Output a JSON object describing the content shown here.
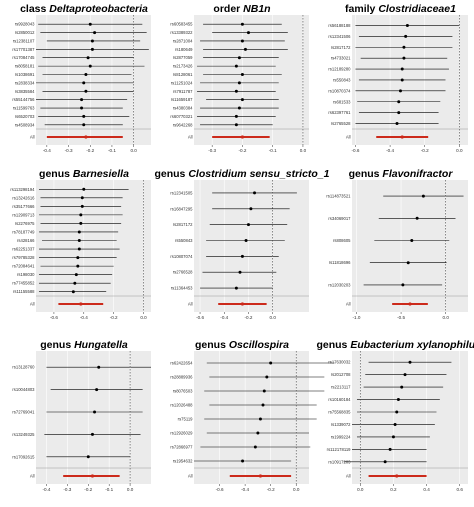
{
  "figure": {
    "panels": [
      {
        "title_prefix": "class ",
        "title_italic": "Deltaproteobacteria"
      },
      {
        "title_prefix": "order ",
        "title_italic": "NB1n"
      },
      {
        "title_prefix": "family ",
        "title_italic": "Clostridiaceae1"
      },
      {
        "title_prefix": "genus ",
        "title_italic": "Barnesiella"
      },
      {
        "title_prefix": "genus ",
        "title_italic": "Clostridium sensu_stricto_1"
      },
      {
        "title_prefix": "genus ",
        "title_italic": "Flavonifractor"
      },
      {
        "title_prefix": "genus ",
        "title_italic": "Hungatella"
      },
      {
        "title_prefix": "genus ",
        "title_italic": "Oscillospira"
      },
      {
        "title_prefix": "genus ",
        "title_italic": "Eubacterium xylanophilum"
      }
    ],
    "colors": {
      "point": "#000000",
      "ci_line": "#000000",
      "overall": "#cc2a1b",
      "panel_bg": "#ebebeb",
      "grid": "#ffffff",
      "zero_line": "#444444"
    }
  },
  "chart_data": [
    {
      "type": "forest",
      "snps": [
        "rs9928043",
        "rs2850012",
        "rs12381107",
        "rs17701387",
        "rs17084745",
        "rs8058181",
        "rs1038691",
        "rs2838334",
        "rs3835584",
        "rs55144756",
        "rs11599763",
        "rs6520703",
        "rs4508934"
      ],
      "estimates": [
        -0.2,
        -0.18,
        -0.19,
        -0.19,
        -0.21,
        -0.2,
        -0.22,
        -0.23,
        -0.22,
        -0.24,
        -0.24,
        -0.23,
        -0.23
      ],
      "ci_low": [
        -0.44,
        -0.43,
        -0.4,
        -0.45,
        -0.42,
        -0.44,
        -0.42,
        -0.45,
        -0.42,
        -0.45,
        -0.43,
        -0.44,
        -0.41
      ],
      "ci_high": [
        0.04,
        0.06,
        0.03,
        0.07,
        0.0,
        0.05,
        -0.01,
        0.0,
        0.0,
        -0.03,
        -0.05,
        -0.02,
        -0.05
      ],
      "overall": {
        "label": "All",
        "estimate": -0.22,
        "ci": [
          -0.4,
          -0.05
        ]
      },
      "xticks": [
        -0.4,
        -0.3,
        -0.2,
        -0.1,
        0.0
      ],
      "xlim": [
        -0.45,
        0.08
      ]
    },
    {
      "type": "forest",
      "snps": [
        "rs60583455",
        "rs13389322",
        "rs2871004",
        "rs180649",
        "rs2877059",
        "rs2173426",
        "rs8128061",
        "rs11251024",
        "rs7911787",
        "rs11659187",
        "rs4380384",
        "rs60770321",
        "rs9642268"
      ],
      "estimates": [
        -0.2,
        -0.18,
        -0.2,
        -0.19,
        -0.21,
        -0.22,
        -0.2,
        -0.21,
        -0.22,
        -0.2,
        -0.21,
        -0.22,
        -0.22
      ],
      "ci_low": [
        -0.33,
        -0.3,
        -0.34,
        -0.33,
        -0.33,
        -0.35,
        -0.33,
        -0.34,
        -0.35,
        -0.32,
        -0.34,
        -0.35,
        -0.34
      ],
      "ci_high": [
        -0.07,
        -0.05,
        -0.06,
        -0.05,
        -0.08,
        -0.09,
        -0.07,
        -0.08,
        -0.09,
        -0.08,
        -0.08,
        -0.09,
        -0.1
      ],
      "overall": {
        "label": "All",
        "estimate": -0.2,
        "ci": [
          -0.3,
          -0.11
        ]
      },
      "xticks": [
        -0.3,
        -0.2,
        -0.1,
        0.0
      ],
      "xlim": [
        -0.36,
        0.02
      ]
    },
    {
      "type": "forest",
      "snps": [
        "rs56188188",
        "rs12341506",
        "rs2817172",
        "rs4733021",
        "rs12189280",
        "rs550843",
        "rs10870374",
        "rs681533",
        "rs62397761",
        "rs2765528"
      ],
      "estimates": [
        -0.3,
        -0.31,
        -0.32,
        -0.32,
        -0.33,
        -0.33,
        -0.34,
        -0.35,
        -0.35,
        -0.36
      ],
      "ci_low": [
        -0.6,
        -0.58,
        -0.6,
        -0.57,
        -0.6,
        -0.58,
        -0.6,
        -0.59,
        -0.58,
        -0.6
      ],
      "ci_high": [
        0.0,
        -0.04,
        -0.04,
        -0.07,
        -0.06,
        -0.08,
        -0.08,
        -0.11,
        -0.12,
        -0.12
      ],
      "overall": {
        "label": "All",
        "estimate": -0.33,
        "ci": [
          -0.48,
          -0.18
        ]
      },
      "xticks": [
        -0.6,
        -0.4,
        -0.2,
        0.0
      ],
      "xlim": [
        -0.62,
        0.05
      ]
    },
    {
      "type": "forest",
      "snps": [
        "rs113298194",
        "rs13242616",
        "rs35177666",
        "rs12909713",
        "rs2276975",
        "rs78187749",
        "rs428166",
        "rs62251337",
        "rs79785328",
        "rs72084641",
        "rs198030",
        "rs77455852",
        "rs11155588"
      ],
      "estimates": [
        -0.4,
        -0.41,
        -0.41,
        -0.42,
        -0.42,
        -0.43,
        -0.43,
        -0.43,
        -0.44,
        -0.44,
        -0.45,
        -0.46,
        -0.47
      ],
      "ci_low": [
        -0.7,
        -0.69,
        -0.69,
        -0.7,
        -0.69,
        -0.7,
        -0.68,
        -0.7,
        -0.7,
        -0.69,
        -0.7,
        -0.7,
        -0.7
      ],
      "ci_high": [
        -0.1,
        -0.14,
        -0.15,
        -0.14,
        -0.15,
        -0.17,
        -0.18,
        -0.16,
        -0.18,
        -0.2,
        -0.21,
        -0.22,
        -0.25
      ],
      "overall": {
        "label": "All",
        "estimate": -0.42,
        "ci": [
          -0.57,
          -0.27
        ]
      },
      "xticks": [
        -0.6,
        -0.4,
        -0.2,
        0.0
      ],
      "xlim": [
        -0.72,
        0.05
      ]
    },
    {
      "type": "forest",
      "snps": [
        "rs12341505",
        "rs16847295",
        "rs2817172",
        "rs550843",
        "rs10807074",
        "rs2766528",
        "rs11364453"
      ],
      "estimates": [
        -0.15,
        -0.18,
        -0.2,
        -0.22,
        -0.25,
        -0.27,
        -0.3
      ],
      "ci_low": [
        -0.5,
        -0.5,
        -0.52,
        -0.55,
        -0.55,
        -0.58,
        -0.6
      ],
      "ci_high": [
        0.2,
        0.14,
        0.12,
        0.1,
        0.05,
        0.03,
        0.0
      ],
      "overall": {
        "label": "All",
        "estimate": -0.25,
        "ci": [
          -0.45,
          -0.05
        ]
      },
      "xticks": [
        -0.6,
        -0.4,
        -0.2,
        0.0
      ],
      "xlim": [
        -0.65,
        0.3
      ]
    },
    {
      "type": "forest",
      "snps": [
        "rs114873521",
        "rs34069017",
        "rs808605",
        "rs11818696",
        "rs12030203"
      ],
      "estimates": [
        -0.25,
        -0.32,
        -0.38,
        -0.42,
        -0.48
      ],
      "ci_low": [
        -0.7,
        -0.75,
        -0.8,
        -0.85,
        -0.92
      ],
      "ci_high": [
        0.2,
        0.11,
        0.04,
        0.01,
        -0.04
      ],
      "overall": {
        "label": "All",
        "estimate": -0.4,
        "ci": [
          -0.6,
          -0.2
        ]
      },
      "xticks": [
        -1.0,
        -0.5,
        0.0
      ],
      "xlim": [
        -1.05,
        0.25
      ]
    },
    {
      "type": "forest",
      "snps": [
        "rs13128760",
        "rs10044803",
        "rs72769041",
        "rs13249325",
        "rs17092615"
      ],
      "estimates": [
        -0.15,
        -0.16,
        -0.17,
        -0.18,
        -0.2
      ],
      "ci_low": [
        -0.4,
        -0.38,
        -0.4,
        -0.41,
        -0.4
      ],
      "ci_high": [
        0.1,
        0.06,
        0.06,
        0.05,
        0.0
      ],
      "overall": {
        "label": "All",
        "estimate": -0.18,
        "ci": [
          -0.32,
          -0.05
        ]
      },
      "xticks": [
        -0.4,
        -0.3,
        -0.2,
        -0.1,
        0.0
      ],
      "xlim": [
        -0.45,
        0.1
      ]
    },
    {
      "type": "forest",
      "snps": [
        "rs62422654",
        "rs28889936",
        "rs8076503",
        "rs12026488",
        "rs75119",
        "rs12926029",
        "rs72866977",
        "rs1954632"
      ],
      "estimates": [
        -0.2,
        -0.23,
        -0.25,
        -0.26,
        -0.28,
        -0.3,
        -0.32,
        -0.42
      ],
      "ci_low": [
        -0.7,
        -0.68,
        -0.72,
        -0.68,
        -0.72,
        -0.7,
        -0.75,
        -0.8
      ],
      "ci_high": [
        0.3,
        0.22,
        0.22,
        0.16,
        0.16,
        0.1,
        0.11,
        -0.04
      ],
      "overall": {
        "label": "All",
        "estimate": -0.28,
        "ci": [
          -0.52,
          -0.04
        ]
      },
      "xticks": [
        -0.6,
        -0.4,
        -0.2,
        0.0
      ],
      "xlim": [
        -0.8,
        0.1
      ]
    },
    {
      "type": "forest",
      "snps": [
        "rs17630032",
        "rs2012708",
        "rs2213117",
        "rs10160184",
        "rs75568835",
        "rs1339072",
        "rs1999224",
        "rs112178119",
        "rs10917203"
      ],
      "estimates": [
        0.3,
        0.27,
        0.25,
        0.23,
        0.22,
        0.21,
        0.2,
        0.18,
        0.15
      ],
      "ci_low": [
        0.05,
        0.03,
        0.02,
        -0.02,
        -0.02,
        -0.05,
        -0.02,
        -0.05,
        -0.1
      ],
      "ci_high": [
        0.55,
        0.52,
        0.5,
        0.48,
        0.46,
        0.45,
        0.42,
        0.4,
        0.4
      ],
      "overall": {
        "label": "All",
        "estimate": 0.22,
        "ci": [
          0.05,
          0.4
        ]
      },
      "xticks": [
        0.0,
        0.2,
        0.4,
        0.6
      ],
      "xlim": [
        -0.05,
        0.65
      ]
    }
  ]
}
